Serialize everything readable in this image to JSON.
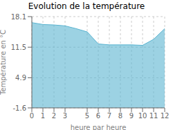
{
  "chart_data": {
    "type": "area",
    "title": "Evolution de la température",
    "xlabel": "heure par heure",
    "ylabel": "Température en °C",
    "x": [
      0,
      1,
      2,
      3,
      4,
      5,
      6,
      7,
      8,
      9,
      10,
      11,
      12
    ],
    "values": [
      16.8,
      16.4,
      16.3,
      16.1,
      15.5,
      14.8,
      12.2,
      12.0,
      12.0,
      12.0,
      11.9,
      13.2,
      15.5
    ],
    "color": "#5ab4d1",
    "xlim": [
      0,
      12
    ],
    "xticks": [
      0,
      1,
      2,
      3,
      5,
      6,
      7,
      8,
      9,
      10,
      11,
      12
    ],
    "ylim": [
      -1.6,
      18.1
    ],
    "yticks": [
      -1.6,
      4.9,
      11.5,
      18.1
    ],
    "grid": true
  }
}
